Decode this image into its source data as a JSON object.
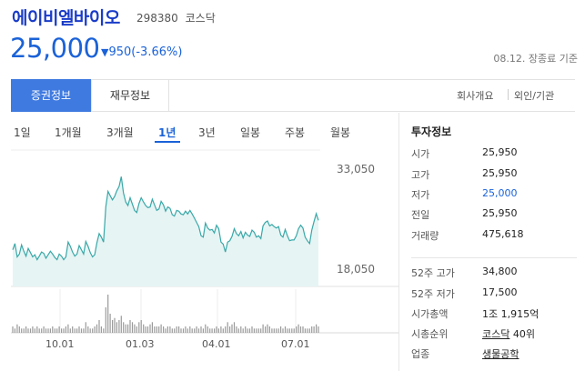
{
  "header": {
    "stock_name": "에이비엘바이오",
    "stock_code": "298380",
    "market": "코스닥",
    "price": "25,000",
    "change_arrow": "▼",
    "change": "950(-3.66%)",
    "date_status": "08.12. 장종료 기준"
  },
  "tabs": [
    {
      "label": "증권정보",
      "active": true
    },
    {
      "label": "재무정보",
      "active": false
    }
  ],
  "right_links": [
    "회사개요",
    "외인/기관"
  ],
  "periods": [
    {
      "label": "1일",
      "active": false
    },
    {
      "label": "1개월",
      "active": false
    },
    {
      "label": "3개월",
      "active": false
    },
    {
      "label": "1년",
      "active": true
    },
    {
      "label": "3년",
      "active": false
    },
    {
      "label": "일봉",
      "active": false
    },
    {
      "label": "주봉",
      "active": false
    },
    {
      "label": "월봉",
      "active": false
    }
  ],
  "chart_data": {
    "type": "area",
    "ymax_label": "33,050",
    "ymin_label": "18,050",
    "ylim": [
      18050,
      33050
    ],
    "x_tick_labels": [
      "10.01",
      "01.03",
      "04.01",
      "07.01"
    ],
    "prices": [
      20800,
      21700,
      19800,
      20200,
      21500,
      20600,
      19900,
      21000,
      20400,
      19800,
      20100,
      19400,
      19900,
      20500,
      20300,
      19600,
      20100,
      20600,
      20200,
      19700,
      19400,
      20200,
      19900,
      19400,
      19800,
      21900,
      21300,
      20500,
      19900,
      20200,
      21400,
      20800,
      20200,
      22000,
      21300,
      20400,
      19800,
      20100,
      21800,
      23100,
      22600,
      21900,
      26900,
      29100,
      28500,
      27900,
      28400,
      29200,
      29800,
      31200,
      28900,
      27600,
      27100,
      28200,
      27300,
      26400,
      26100,
      27400,
      28200,
      27600,
      27100,
      26800,
      26900,
      28000,
      27200,
      26400,
      26600,
      27700,
      27200,
      26300,
      26900,
      26700,
      25800,
      25600,
      26400,
      26300,
      25900,
      25800,
      26300,
      25900,
      26400,
      25900,
      25300,
      24700,
      24100,
      22800,
      22600,
      24600,
      23900,
      23600,
      23700,
      23200,
      24300,
      23800,
      21900,
      21600,
      20500,
      21900,
      22100,
      22700,
      23800,
      23100,
      22800,
      23400,
      22500,
      23300,
      22900,
      22700,
      23600,
      23300,
      22600,
      22800,
      22400,
      24200,
      24700,
      24900,
      24200,
      24400,
      24100,
      23900,
      24100,
      22900,
      22600,
      23700,
      22800,
      22100,
      22200,
      22200,
      22800,
      23800,
      24300,
      23900,
      22600,
      22100,
      21700,
      23600,
      24800,
      25950,
      25000
    ],
    "volumes": [
      3,
      2,
      4,
      3,
      2,
      2,
      3,
      2,
      2,
      3,
      2,
      3,
      2,
      2,
      3,
      2,
      2,
      2,
      3,
      2,
      2,
      3,
      2,
      2,
      3,
      4,
      2,
      3,
      2,
      2,
      3,
      2,
      2,
      5,
      3,
      2,
      2,
      3,
      4,
      6,
      3,
      2,
      12,
      18,
      9,
      6,
      7,
      5,
      6,
      8,
      5,
      4,
      4,
      6,
      5,
      4,
      3,
      5,
      6,
      4,
      3,
      3,
      4,
      5,
      3,
      3,
      3,
      4,
      3,
      2,
      3,
      3,
      2,
      2,
      3,
      3,
      2,
      2,
      3,
      2,
      3,
      2,
      2,
      3,
      2,
      3,
      2,
      4,
      3,
      2,
      2,
      2,
      3,
      2,
      3,
      2,
      3,
      5,
      3,
      4,
      5,
      3,
      2,
      3,
      2,
      3,
      2,
      2,
      3,
      2,
      2,
      2,
      2,
      4,
      3,
      4,
      3,
      2,
      2,
      2,
      2,
      3,
      2,
      3,
      2,
      2,
      2,
      2,
      3,
      4,
      3,
      3,
      2,
      2,
      2,
      3,
      3,
      4,
      3
    ]
  },
  "investment_info": {
    "title": "투자정보",
    "rows": [
      {
        "label": "시가",
        "value": "25,950"
      },
      {
        "label": "고가",
        "value": "25,950"
      },
      {
        "label": "저가",
        "value": "25,000",
        "highlight": true
      },
      {
        "label": "전일",
        "value": "25,950"
      },
      {
        "label": "거래량",
        "value": "475,618"
      }
    ],
    "rows2": [
      {
        "label": "52주 고가",
        "value": "34,800"
      },
      {
        "label": "52주 저가",
        "value": "17,500"
      },
      {
        "label": "시가총액",
        "value": "1조 1,915억"
      },
      {
        "label": "시총순위",
        "value_link": "코스닥",
        "value_rest": " 40위"
      },
      {
        "label": "업종",
        "value_link": "생물공학"
      }
    ]
  },
  "colors": {
    "accent": "#1a62d8",
    "tab_active_bg": "#3f7ae0",
    "line": "#3aa8a8",
    "area": "#e6f4f4"
  }
}
